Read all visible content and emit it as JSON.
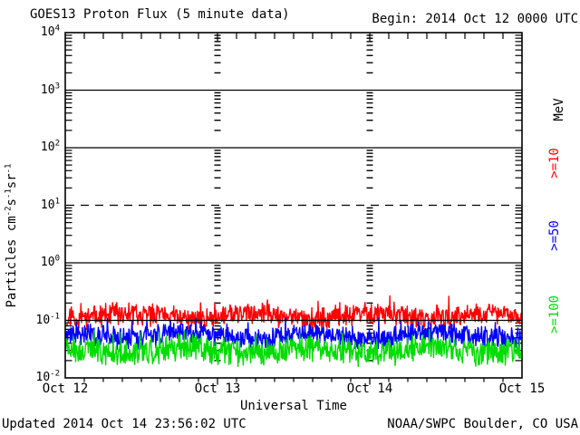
{
  "header": {
    "title": "GOES13 Proton Flux (5 minute data)",
    "begin": "Begin: 2014 Oct 12 0000 UTC"
  },
  "footer": {
    "updated": "Updated 2014 Oct 14 23:56:02 UTC",
    "source": "NOAA/SWPC Boulder, CO USA"
  },
  "chart_data": {
    "type": "line",
    "title": "GOES13 Proton Flux (5 minute data)",
    "begin_annotation": "Begin: 2014 Oct 12 0000 UTC",
    "xlabel": "Universal Time",
    "ylabel": "Particles cm-2s-1sr-1",
    "ylabel_parts": [
      {
        "t": "Particles cm"
      },
      {
        "sup": "-2"
      },
      {
        "t": "s"
      },
      {
        "sup": "-1"
      },
      {
        "t": "sr"
      },
      {
        "sup": "-1"
      }
    ],
    "unit_label": "MeV",
    "y_scale": "log",
    "ylim": [
      0.01,
      10000
    ],
    "y_decade_exponents": [
      4,
      3,
      2,
      1,
      0,
      -1,
      -2
    ],
    "solid_gridline_exponents": [
      3,
      2,
      0,
      -1
    ],
    "dashed_gridline_exponents": [
      1
    ],
    "x_ticks": [
      "Oct 12",
      "Oct 13",
      "Oct 14",
      "Oct 15"
    ],
    "vertical_gridline_ticks": [
      "Oct 13",
      "Oct 14"
    ],
    "x_range_days": 3,
    "cadence_minutes": 5,
    "points_per_series": 864,
    "grid_color": "#000000",
    "series": [
      {
        "name": ">=10",
        "unit": "MeV",
        "color": "#ff0000",
        "approx_mean_flux": 0.12,
        "approx_range": [
          0.07,
          0.3
        ],
        "base_log10": -0.93,
        "noise1": 0.3,
        "noise2": 0.12,
        "spike_prob": 0.05,
        "spike_log10": 0.24,
        "clamp_log10": [
          -1.17,
          -0.52
        ],
        "seed": 11
      },
      {
        "name": ">=50",
        "unit": "MeV",
        "color": "#0000ff",
        "approx_mean_flux": 0.055,
        "approx_range": [
          0.03,
          0.15
        ],
        "base_log10": -1.27,
        "noise1": 0.3,
        "noise2": 0.12,
        "spike_prob": 0.05,
        "spike_log10": 0.24,
        "clamp_log10": [
          -1.57,
          -0.84
        ],
        "seed": 77
      },
      {
        "name": ">=100",
        "unit": "MeV",
        "color": "#00dd00",
        "approx_mean_flux": 0.03,
        "approx_range": [
          0.012,
          0.07
        ],
        "base_log10": -1.53,
        "noise1": 0.38,
        "noise2": 0.14,
        "spike_prob": 0.05,
        "spike_log10": 0.22,
        "clamp_log10": [
          -1.94,
          -1.16
        ],
        "seed": 140
      }
    ]
  }
}
